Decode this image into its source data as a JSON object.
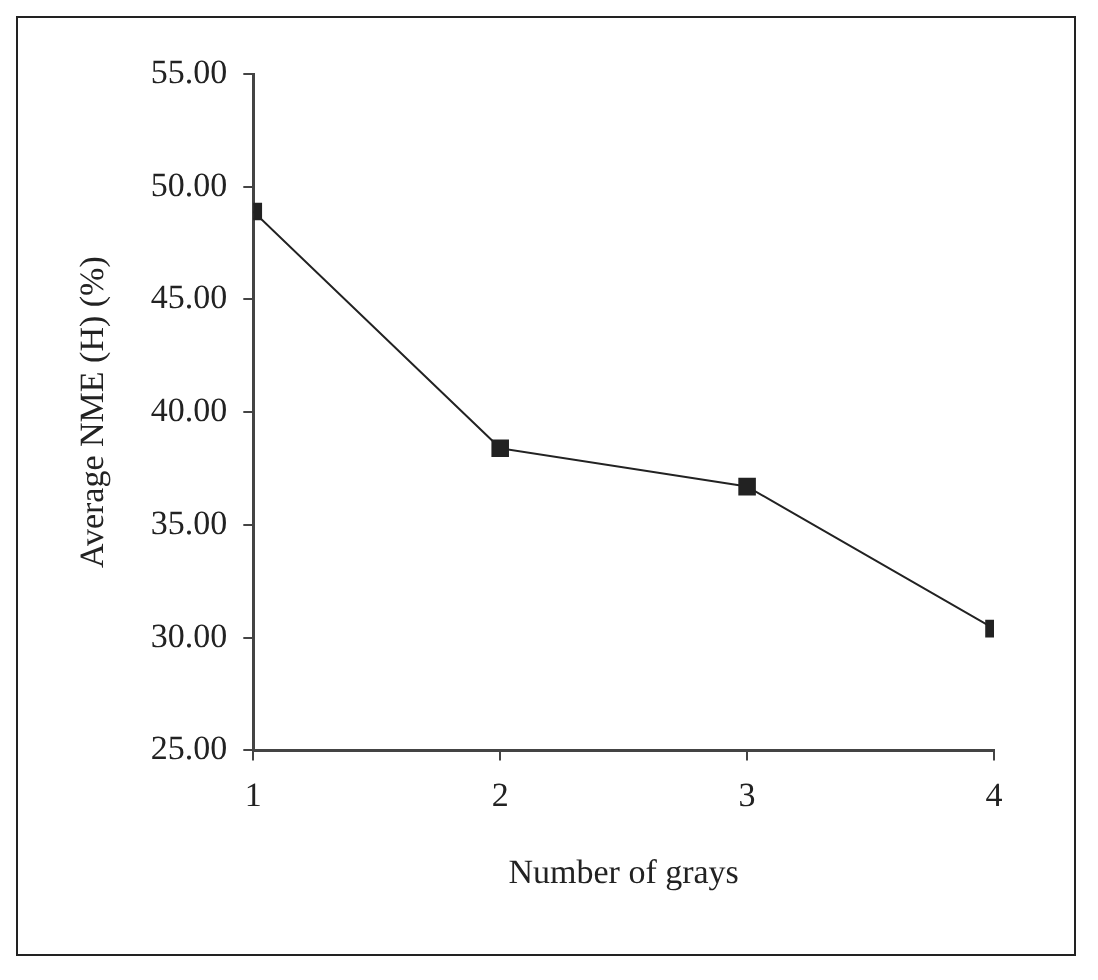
{
  "chart_data": {
    "type": "line",
    "xlabel": "Number of grays",
    "ylabel": "Average NME (H) (%)",
    "x": [
      1,
      2,
      3,
      4
    ],
    "series": [
      {
        "color": "#222222",
        "values": [
          48.9,
          38.4,
          36.7,
          30.4
        ]
      }
    ],
    "xlim": [
      1,
      4
    ],
    "xticks": [
      1,
      2,
      3,
      4
    ],
    "ylim": [
      25,
      55
    ],
    "yticks": [
      {
        "value": 25,
        "label": "25.00"
      },
      {
        "value": 30,
        "label": "30.00"
      },
      {
        "value": 35,
        "label": "35.00"
      },
      {
        "value": 40,
        "label": "40.00"
      },
      {
        "value": 45,
        "label": "45.00"
      },
      {
        "value": 50,
        "label": "50.00"
      },
      {
        "value": 55,
        "label": "55.00"
      }
    ],
    "grid": false,
    "legend": false,
    "marker": "square",
    "line_style": "solid"
  }
}
